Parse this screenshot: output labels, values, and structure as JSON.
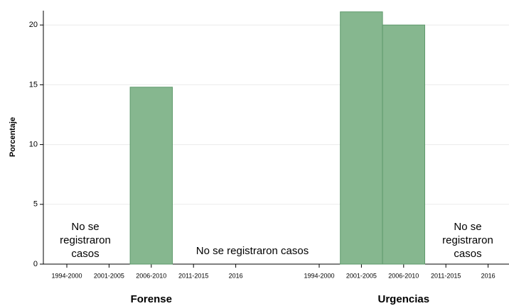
{
  "chart_data": {
    "type": "bar",
    "ylabel": "Porcentaje",
    "ylim": [
      0,
      21.2
    ],
    "yticks": [
      0,
      5,
      10,
      15,
      20
    ],
    "grid": true,
    "color": "#86b78f",
    "groups": [
      {
        "name": "Forense",
        "categories": [
          "1994-2000",
          "2001-2005",
          "2006-2010",
          "2011-2015",
          "2016"
        ],
        "values": [
          null,
          null,
          14.8,
          null,
          null
        ]
      },
      {
        "name": "Urgencias",
        "categories": [
          "1994-2000",
          "2001-2005",
          "2006-2010",
          "2011-2015",
          "2016"
        ],
        "values": [
          null,
          21.1,
          20.0,
          null,
          null
        ]
      }
    ],
    "annotations": [
      {
        "lines": [
          "No se",
          "registraron",
          "casos"
        ]
      },
      {
        "lines": [
          "No se  registraron casos"
        ]
      },
      {
        "lines": [
          "No se",
          "registraron",
          "casos"
        ]
      }
    ]
  }
}
